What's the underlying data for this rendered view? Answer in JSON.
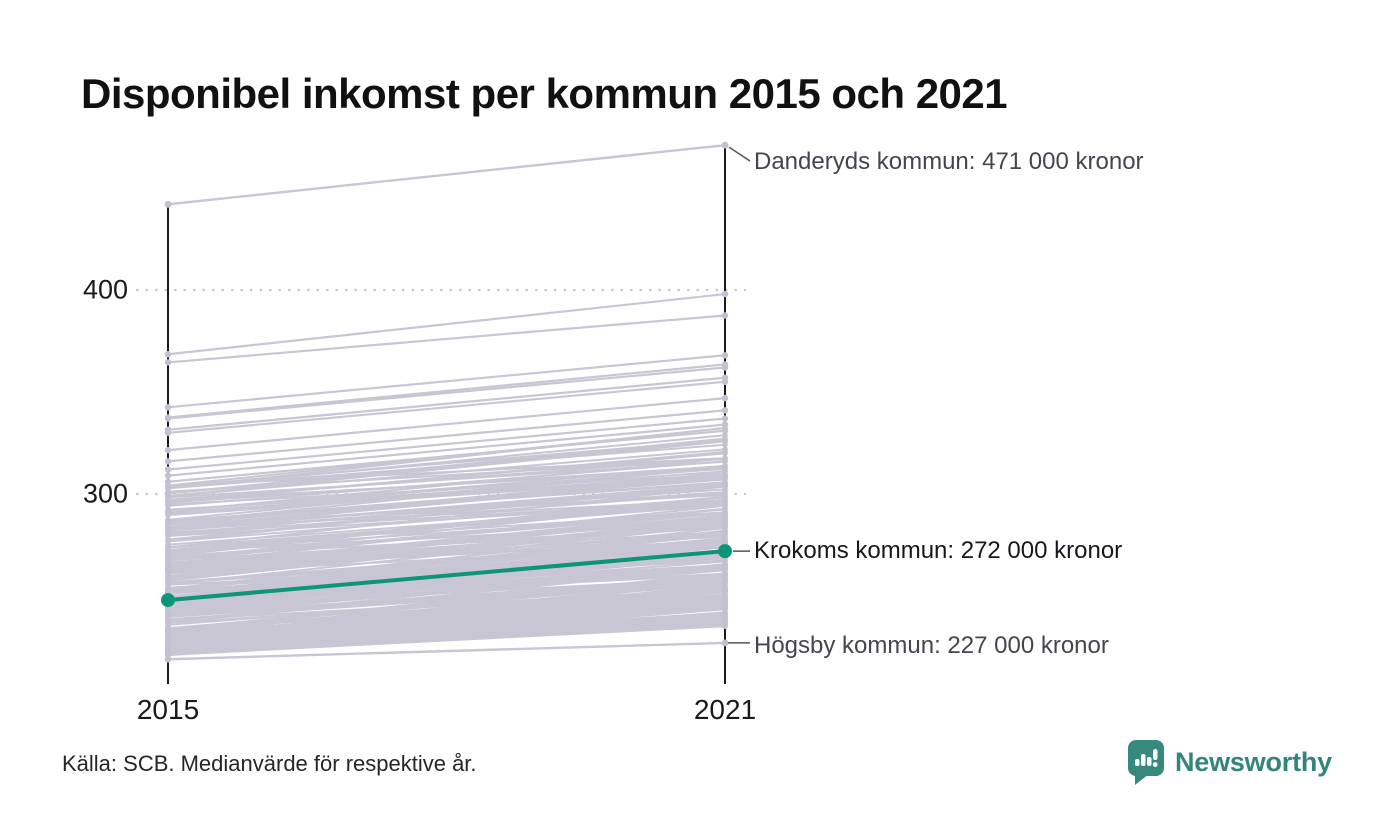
{
  "title": "Disponibel inkomst per kommun 2015 och 2021",
  "source": "Källa: SCB. Medianvärde för respektive år.",
  "logo": {
    "brand": "Newsworthy",
    "color": "#37897e"
  },
  "chart_data": {
    "type": "line",
    "subtype": "slopegraph",
    "title": "Disponibel inkomst per kommun 2015 och 2021",
    "x_labels": [
      "2015",
      "2021"
    ],
    "y_ticks": [
      300,
      400
    ],
    "y_unit": "tusen kronor (1000 SEK)",
    "grid": "dotted horizontal at y-ticks",
    "colors": {
      "background_line": "#c8c6d3",
      "endpoint_dot": "#c3c1cf",
      "highlight": "#0e9578",
      "axis": "#1a1a1a",
      "gridline": "#c9c9c9",
      "connector": "#555555"
    },
    "highlight": {
      "name": "Krokoms kommun",
      "values": [
        248,
        272
      ],
      "label": "Krokoms kommun: 272 000 kronor"
    },
    "annotated": [
      {
        "name": "Danderyds kommun",
        "values": [
          442,
          471
        ],
        "label": "Danderyds kommun: 471 000 kronor"
      },
      {
        "name": "Högsby kommun",
        "values": [
          219,
          227
        ],
        "label": "Högsby kommun: 227 000 kronor"
      }
    ],
    "distinct_lines": [
      [
        368.5,
        398
      ],
      [
        364.5,
        387.5
      ],
      [
        342.5,
        368
      ],
      [
        337.5,
        363.5
      ],
      [
        337,
        362
      ],
      [
        331.5,
        357
      ],
      [
        330,
        355
      ],
      [
        321.5,
        347
      ],
      [
        316,
        341
      ],
      [
        312,
        337
      ],
      [
        309,
        334
      ],
      [
        306,
        331
      ]
    ],
    "background_band": {
      "description": "remaining Swedish municipalities, individually unreadable dense bundle",
      "count": 268,
      "v2015_min": 221,
      "v2015_span": 84,
      "skew_exponent": 1.7,
      "delta_min": 13,
      "delta_span": 17,
      "seed": 42
    }
  }
}
